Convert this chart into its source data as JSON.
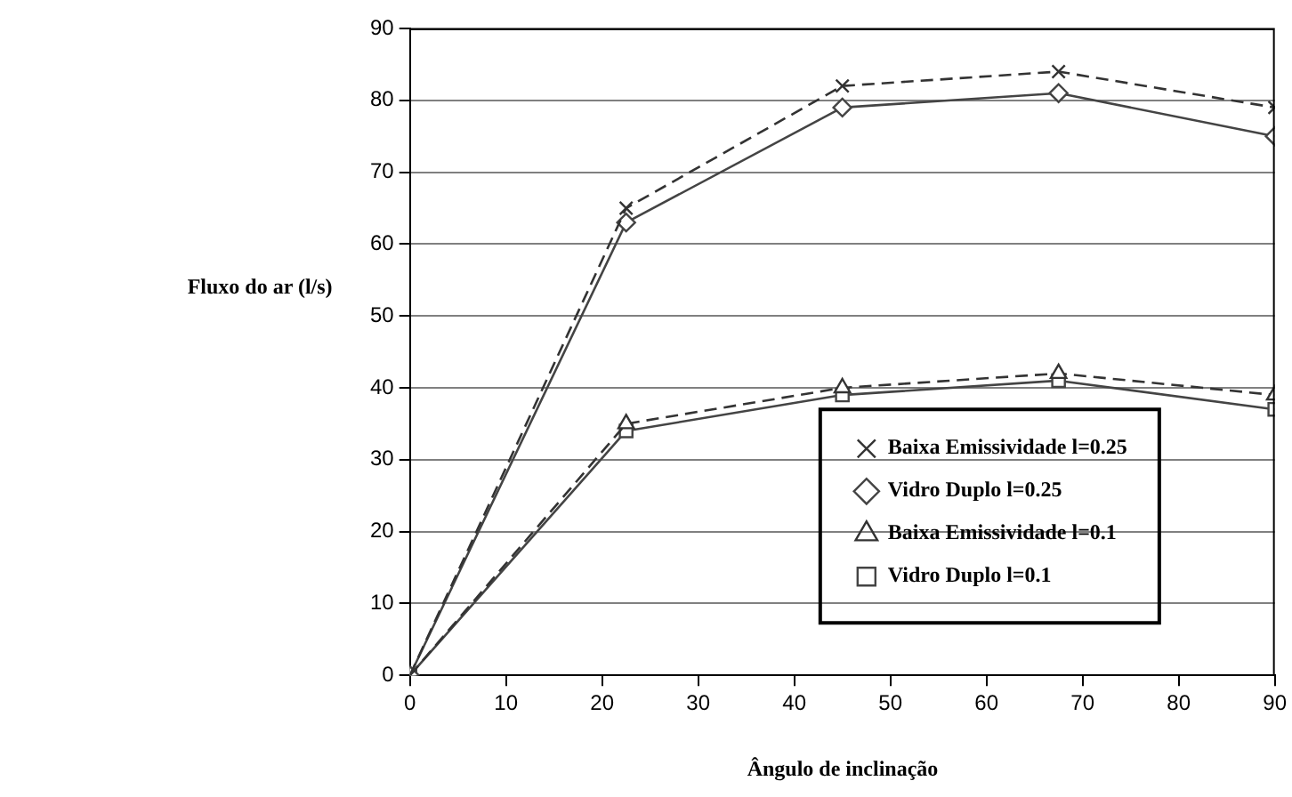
{
  "chart_data": {
    "type": "line",
    "xlabel": "Ângulo de inclinação",
    "ylabel": "Fluxo do ar (l/s)",
    "x": [
      0,
      22.5,
      45,
      67.5,
      90
    ],
    "xlim": [
      0,
      90
    ],
    "xticks": [
      0,
      10,
      20,
      30,
      40,
      50,
      60,
      70,
      80,
      90
    ],
    "ylim": [
      0,
      90
    ],
    "yticks": [
      0,
      10,
      20,
      30,
      40,
      50,
      60,
      70,
      80,
      90
    ],
    "grid": "y",
    "legend": "bottom right",
    "series": [
      {
        "name": "Baixa Emissividade l=0.25",
        "color": "#333333",
        "values": [
          0,
          65,
          82,
          84,
          79
        ],
        "marker": "cross",
        "line_style": "dashed"
      },
      {
        "name": "Vidro Duplo l=0.25",
        "color": "#444444",
        "values": [
          0,
          63,
          79,
          81,
          75
        ],
        "marker": "diamond",
        "line_style": "solid"
      },
      {
        "name": "Baixa Emissividade l=0.1",
        "color": "#333333",
        "values": [
          0,
          35,
          40,
          42,
          39
        ],
        "marker": "triangle",
        "line_style": "dashed"
      },
      {
        "name": "Vidro Duplo l=0.1",
        "color": "#444444",
        "values": [
          0,
          34,
          39,
          41,
          37
        ],
        "marker": "square",
        "line_style": "solid"
      }
    ]
  }
}
